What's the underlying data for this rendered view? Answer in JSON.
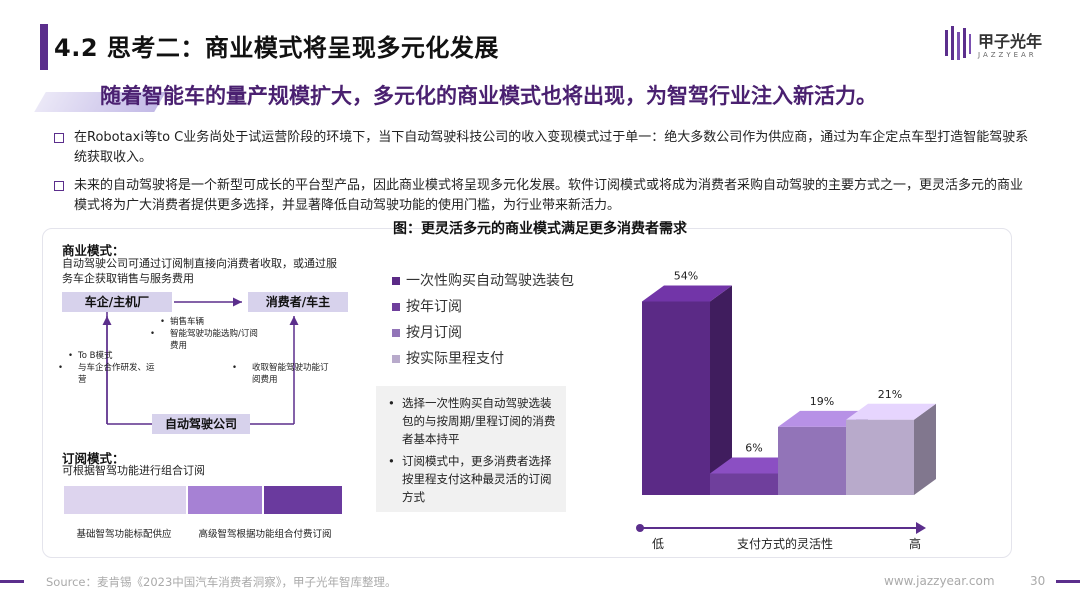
{
  "header": {
    "title": "4.2 思考二：商业模式将呈现多元化发展",
    "logo_name": "甲子光年",
    "logo_sub": "JAZZYEAR"
  },
  "subtitle": "随着智能车的量产规模扩大，多元化的商业模式也将出现，为智驾行业注入新活力。",
  "bullets": [
    "在Robotaxi等to C业务尚处于试运营阶段的环境下，当下自动驾驶科技公司的收入变现模式过于单一：绝大多数公司作为供应商，通过为车企定点车型打造智能驾驶系统获取收入。",
    "未来的自动驾驶将是一个新型可成长的平台型产品，因此商业模式将呈现多元化发展。软件订阅模式或将成为消费者采购自动驾驶的主要方式之一，更灵活多元的商业模式将为广大消费者提供更多选择，并显著降低自动驾驶功能的使用门槛，为行业带来新活力。"
  ],
  "figure_caption": "图：更灵活多元的商业模式满足更多消费者需求",
  "business_model": {
    "heading": "商业模式：",
    "desc": "自动驾驶公司可通过订阅制直接向消费者收取，或通过服务车企获取销售与服务费用",
    "node_oem": "车企/主机厂",
    "node_consumer": "消费者/车主",
    "node_company": "自动驾驶公司",
    "flow_top": [
      "销售车辆",
      "智能驾驶功能选购/订阅费用"
    ],
    "flow_left": [
      "To B模式",
      "与车企合作研发、运营"
    ],
    "flow_right": [
      "收取智能驾驶功能订阅费用"
    ]
  },
  "subscription_model": {
    "heading": "订阅模式：",
    "desc": "可根据智驾功能进行组合订阅",
    "label_left": "基础智驾功能标配供应",
    "label_right": "高级智驾根据功能组合付费订阅",
    "swatch_colors": [
      "#ddd4ee",
      "#a681d4",
      "#6a3a9e"
    ]
  },
  "legend": [
    {
      "label": "一次性购买自动驾驶选装包",
      "color": "#5b2a86"
    },
    {
      "label": "按年订阅",
      "color": "#6f3f9c"
    },
    {
      "label": "按月订阅",
      "color": "#9274b8"
    },
    {
      "label": "按实际里程支付",
      "color": "#b8aacb"
    }
  ],
  "notes": [
    "选择一次性购买自动驾驶选装包的与按周期/里程订阅的消费者基本持平",
    "订阅模式中，更多消费者选择按里程支付这种最灵活的订阅方式"
  ],
  "chart_data": {
    "type": "bar",
    "categories": [
      "一次性购买自动驾驶选装包",
      "按年订阅",
      "按月订阅",
      "按实际里程支付"
    ],
    "values": [
      54,
      6,
      19,
      21
    ],
    "value_labels": [
      "54%",
      "6%",
      "19%",
      "21%"
    ],
    "xlabel": "支付方式的灵活性",
    "x_low": "低",
    "x_high": "高",
    "ylim": [
      0,
      60
    ],
    "colors": [
      "#5b2a86",
      "#6f3f9c",
      "#9274b8",
      "#b8aacb"
    ]
  },
  "footer": {
    "source": "Source：麦肯锡《2023中国汽车消费者洞察》，甲子光年智库整理。",
    "site": "www.jazzyear.com",
    "page": "30"
  }
}
